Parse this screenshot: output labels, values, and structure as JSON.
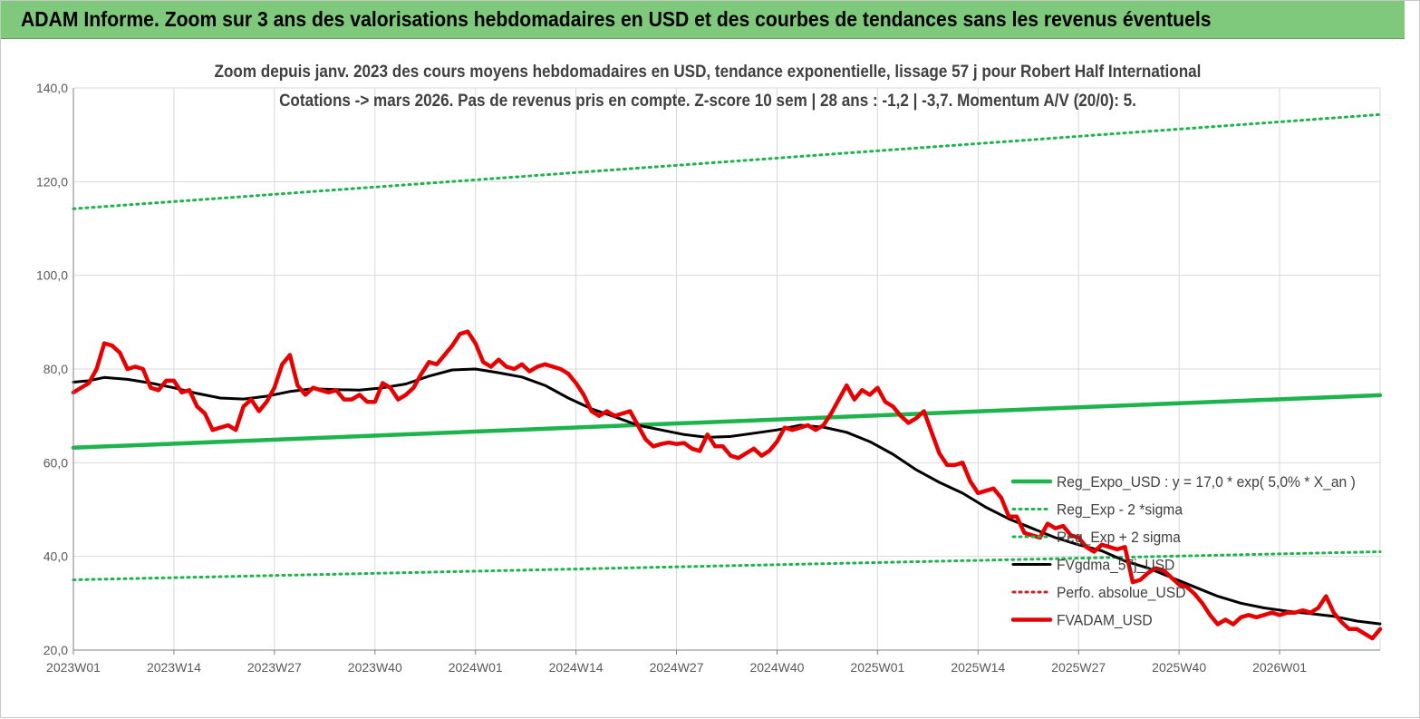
{
  "header": {
    "title": "ADAM Informe. Zoom sur 3 ans des valorisations hebdomadaires en USD et des courbes de tendances sans les revenus éventuels",
    "background": "#7fc97c"
  },
  "chart_data": {
    "type": "line",
    "title": "Zoom depuis janv.  2023 des cours moyens hebdomadaires en USD, tendance exponentielle, lissage 57  j pour Robert Half International",
    "subtitle": "Cotations -> mars 2026. Pas de revenus pris en  compte. Z-score 10 sem  | 28 ans : -1,2 | -3,7. Momentum A/V (20/0): 5.",
    "ylim": [
      20,
      140
    ],
    "yticks": [
      "20,0",
      "40,0",
      "60,0",
      "80,0",
      "100,0",
      "120,0",
      "140,0"
    ],
    "xticks": [
      "2023W01",
      "2023W14",
      "2023W27",
      "2023W40",
      "2024W01",
      "2024W14",
      "2024W27",
      "2024W40",
      "2025W01",
      "2025W14",
      "2025W27",
      "2025W40",
      "2026W01"
    ],
    "grid": true,
    "legend_position": "right",
    "series": [
      {
        "name": "Reg_Expo_USD : y = 17,0 * exp( 5,0% *  X_an )",
        "color": "#1db34d",
        "style": "solid-thick",
        "x": [
          0,
          169
        ],
        "y": [
          63.2,
          74.4
        ]
      },
      {
        "name": "Reg_Exp - 2 *sigma",
        "color": "#1db34d",
        "style": "dotted",
        "x": [
          0,
          169
        ],
        "y": [
          35.0,
          41.0
        ]
      },
      {
        "name": "Reg_Exp + 2 sigma",
        "color": "#1db34d",
        "style": "dotted",
        "x": [
          0,
          169
        ],
        "y": [
          114.2,
          134.3
        ]
      },
      {
        "name": "FVgdma_57j_USD",
        "color": "#000000",
        "style": "solid",
        "x": [
          0,
          2,
          4,
          7,
          10,
          13,
          16,
          19,
          22,
          25,
          28,
          31,
          34,
          37,
          40,
          43,
          46,
          49,
          52,
          55,
          58,
          61,
          64,
          67,
          70,
          73,
          76,
          79,
          82,
          85,
          88,
          91,
          94,
          97,
          100,
          103,
          106,
          109,
          112,
          115,
          118,
          121,
          124,
          127,
          130,
          133,
          136,
          139,
          142,
          145,
          148,
          151,
          154,
          157,
          160,
          163,
          166,
          169
        ],
        "y": [
          77.2,
          77.5,
          78.2,
          77.8,
          77.0,
          76.0,
          74.8,
          73.8,
          73.6,
          74.2,
          75.2,
          75.8,
          75.6,
          75.5,
          76.0,
          76.8,
          78.5,
          79.8,
          80.0,
          79.2,
          78.3,
          76.5,
          73.8,
          71.5,
          69.8,
          68.0,
          67.0,
          66.0,
          65.4,
          65.6,
          66.3,
          67.0,
          68.0,
          67.6,
          66.5,
          64.5,
          61.8,
          58.5,
          55.8,
          53.5,
          50.5,
          48.0,
          46.0,
          44.0,
          42.5,
          41.2,
          39.0,
          37.5,
          35.5,
          33.5,
          31.5,
          30.0,
          29.0,
          28.3,
          27.8,
          27.2,
          26.2,
          25.6
        ]
      },
      {
        "name": "Perfo. absolue_USD",
        "color": "#cc2222",
        "style": "dotted",
        "x": [],
        "y": []
      },
      {
        "name": "FVADAM_USD",
        "color": "#e60000",
        "style": "solid-thick",
        "x": [
          0,
          2,
          3,
          4,
          5,
          6,
          7,
          8,
          9,
          10,
          11,
          12,
          13,
          14,
          15,
          16,
          17,
          18,
          19,
          20,
          21,
          22,
          23,
          24,
          25,
          26,
          27,
          28,
          29,
          30,
          31,
          32,
          33,
          34,
          35,
          36,
          37,
          38,
          39,
          40,
          41,
          42,
          43,
          44,
          45,
          46,
          47,
          48,
          49,
          50,
          51,
          52,
          53,
          54,
          55,
          56,
          57,
          58,
          59,
          60,
          61,
          62,
          63,
          64,
          65,
          66,
          67,
          68,
          69,
          70,
          71,
          72,
          73,
          74,
          75,
          76,
          77,
          78,
          79,
          80,
          81,
          82,
          83,
          84,
          85,
          86,
          87,
          88,
          89,
          90,
          91,
          92,
          93,
          94,
          95,
          96,
          97,
          98,
          99,
          100,
          101,
          102,
          103,
          104,
          105,
          106,
          107,
          108,
          109,
          110,
          111,
          112,
          113,
          114,
          115,
          116,
          117,
          118,
          119,
          120,
          121,
          122,
          123,
          124,
          125,
          126,
          127,
          128,
          129,
          130,
          131,
          132,
          133,
          134,
          135,
          136,
          137,
          138,
          139,
          140,
          141,
          142,
          143,
          144,
          145,
          146,
          147,
          148,
          149,
          150,
          151,
          152,
          153,
          154,
          155,
          156,
          157,
          158,
          159,
          160,
          161,
          162,
          163,
          164,
          165,
          166,
          167,
          168,
          169
        ],
        "y": [
          75.0,
          77.0,
          80.0,
          85.5,
          85.0,
          83.5,
          80.0,
          80.5,
          80.0,
          76.0,
          75.5,
          77.5,
          77.5,
          75.0,
          75.5,
          72.0,
          70.5,
          67.0,
          67.5,
          68.0,
          67.0,
          72.0,
          73.5,
          71.0,
          73.0,
          76.0,
          81.0,
          83.0,
          76.5,
          74.5,
          76.0,
          75.5,
          75.0,
          75.5,
          73.5,
          73.5,
          74.5,
          73.0,
          73.0,
          77.0,
          76.0,
          73.5,
          74.5,
          76.0,
          79.0,
          81.5,
          81.0,
          83.0,
          85.0,
          87.5,
          88.0,
          85.5,
          81.5,
          80.5,
          82.0,
          80.5,
          80.0,
          81.0,
          79.5,
          80.5,
          81.0,
          80.5,
          80.0,
          79.0,
          77.0,
          74.5,
          71.0,
          70.0,
          71.0,
          70.0,
          70.5,
          71.0,
          68.0,
          65.0,
          63.5,
          64.0,
          64.3,
          64.0,
          64.2,
          63.0,
          62.5,
          66.0,
          63.5,
          63.5,
          61.5,
          61.0,
          62.0,
          63.0,
          61.5,
          62.5,
          64.5,
          67.5,
          67.0,
          67.5,
          68.0,
          67.0,
          68.0,
          70.5,
          73.5,
          76.5,
          73.5,
          75.5,
          74.5,
          76.0,
          73.0,
          72.0,
          70.0,
          68.5,
          69.5,
          71.0,
          66.5,
          62.0,
          59.5,
          59.5,
          60.0,
          56.0,
          53.5,
          54.0,
          54.5,
          52.5,
          48.5,
          48.5,
          45.0,
          44.5,
          44.0,
          47.0,
          46.0,
          46.5,
          44.5,
          44.0,
          42.0,
          41.0,
          42.5,
          42.0,
          41.5,
          42.0,
          34.5,
          35.0,
          36.5,
          37.5,
          37.0,
          35.5,
          34.0,
          33.5,
          32.0,
          30.0,
          27.5,
          25.5,
          26.5,
          25.5,
          27.0,
          27.5,
          27.0,
          27.5,
          28.0,
          27.5,
          28.0,
          28.0,
          28.5,
          28.0,
          29.0,
          31.5,
          28.0,
          26.0,
          24.5,
          24.5,
          23.5,
          22.5,
          24.5
        ]
      }
    ]
  }
}
